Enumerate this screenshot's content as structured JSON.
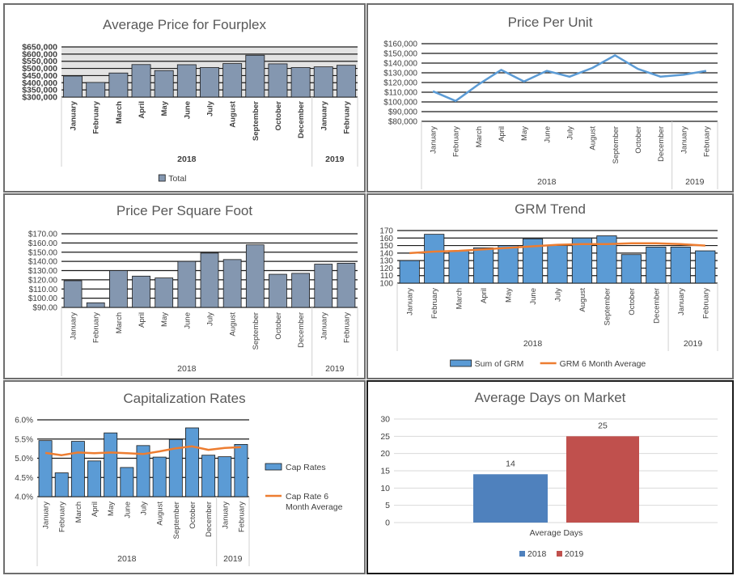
{
  "chart_data": [
    {
      "type": "bar",
      "title": "Average Price for Fourplex",
      "categories": [
        "January",
        "February",
        "March",
        "April",
        "May",
        "June",
        "July",
        "August",
        "September",
        "October",
        "December",
        "January",
        "February"
      ],
      "groups": [
        {
          "label": "2018",
          "count": 11
        },
        {
          "label": "2019",
          "count": 2
        }
      ],
      "series": [
        {
          "name": "Total",
          "color": "#8497b0",
          "values": [
            447000,
            402000,
            468000,
            527000,
            485000,
            526000,
            506000,
            534000,
            592000,
            532000,
            506000,
            511000,
            522000
          ]
        }
      ],
      "ylim": [
        300000,
        650000
      ],
      "yticks": [
        "$300,000",
        "$350,000",
        "$400,000",
        "$450,000",
        "$500,000",
        "$550,000",
        "$600,000",
        "$650,000"
      ],
      "legend": "bottom"
    },
    {
      "type": "line",
      "title": "Price Per Unit",
      "categories": [
        "January",
        "February",
        "March",
        "April",
        "May",
        "June",
        "July",
        "August",
        "September",
        "October",
        "December",
        "January",
        "February"
      ],
      "groups": [
        {
          "label": "2018",
          "count": 11
        },
        {
          "label": "2019",
          "count": 2
        }
      ],
      "series": [
        {
          "color": "#5b9bd5",
          "values": [
            111000,
            101000,
            118000,
            133000,
            121000,
            132000,
            126000,
            135000,
            148000,
            134000,
            126000,
            128000,
            132000
          ]
        }
      ],
      "ylim": [
        80000,
        160000
      ],
      "yticks": [
        "$80,000",
        "$90,000",
        "$100,000",
        "$110,000",
        "$120,000",
        "$130,000",
        "$140,000",
        "$150,000",
        "$160,000"
      ]
    },
    {
      "type": "bar",
      "title": "Price Per Square Foot",
      "categories": [
        "January",
        "February",
        "March",
        "April",
        "May",
        "June",
        "July",
        "August",
        "September",
        "October",
        "December",
        "January",
        "February"
      ],
      "groups": [
        {
          "label": "2018",
          "count": 11
        },
        {
          "label": "2019",
          "count": 2
        }
      ],
      "series": [
        {
          "color": "#8497b0",
          "values": [
            119,
            95,
            130,
            124,
            122,
            140,
            149,
            142,
            158,
            126,
            127,
            137,
            138
          ]
        }
      ],
      "ylim": [
        90,
        170
      ],
      "yticks": [
        "$90.00",
        "$100.00",
        "$110.00",
        "$120.00",
        "$130.00",
        "$140.00",
        "$150.00",
        "$160.00",
        "$170.00"
      ]
    },
    {
      "type": "bar",
      "title": "GRM Trend",
      "categories": [
        "January",
        "February",
        "March",
        "April",
        "May",
        "June",
        "July",
        "August",
        "September",
        "October",
        "December",
        "January",
        "February"
      ],
      "groups": [
        {
          "label": "2018",
          "count": 11
        },
        {
          "label": "2019",
          "count": 2
        }
      ],
      "series": [
        {
          "name": "Sum of GRM",
          "type": "bar",
          "color": "#5b9bd5",
          "values": [
            130,
            165,
            143,
            147,
            150,
            159,
            150,
            160,
            163,
            138,
            148,
            148,
            143
          ]
        },
        {
          "name": "GRM 6 Month Average",
          "type": "line",
          "color": "#ed7d31",
          "values": [
            140,
            142,
            143,
            145,
            147,
            149,
            151,
            152,
            152,
            153,
            153,
            152,
            150
          ]
        }
      ],
      "ylim": [
        100,
        170
      ],
      "yticks": [
        "100",
        "110",
        "120",
        "130",
        "140",
        "150",
        "160",
        "170"
      ],
      "legend": "bottom"
    },
    {
      "type": "bar",
      "title": "Capitalization Rates",
      "categories": [
        "January",
        "February",
        "March",
        "April",
        "May",
        "June",
        "July",
        "August",
        "September",
        "October",
        "December",
        "January",
        "February"
      ],
      "groups": [
        {
          "label": "2018",
          "count": 11
        },
        {
          "label": "2019",
          "count": 2
        }
      ],
      "series": [
        {
          "name": "Cap Rates",
          "type": "bar",
          "color": "#5b9bd5",
          "values": [
            5.46,
            4.62,
            5.44,
            4.93,
            5.66,
            4.76,
            5.33,
            5.03,
            5.49,
            5.79,
            5.08,
            5.04,
            5.36
          ]
        },
        {
          "name": "Cap Rate 6 Month Average",
          "type": "line",
          "color": "#ed7d31",
          "values": [
            5.14,
            5.08,
            5.15,
            5.13,
            5.15,
            5.13,
            5.11,
            5.18,
            5.26,
            5.31,
            5.22,
            5.27,
            5.29
          ]
        }
      ],
      "ylim": [
        4.0,
        6.0
      ],
      "yticks": [
        "4.0%",
        "4.5%",
        "5.0%",
        "5.5%",
        "6.0%"
      ],
      "legend": "right"
    },
    {
      "type": "bar",
      "title": "Average Days on Market",
      "categories": [
        "Average Days"
      ],
      "series": [
        {
          "name": "2018",
          "color": "#4f81bd",
          "values": [
            14
          ]
        },
        {
          "name": "2019",
          "color": "#c0504d",
          "values": [
            25
          ]
        }
      ],
      "data_labels": [
        "14",
        "25"
      ],
      "ylim": [
        0,
        30
      ],
      "yticks": [
        "0",
        "5",
        "10",
        "15",
        "20",
        "25",
        "30"
      ],
      "legend": "bottom"
    }
  ]
}
